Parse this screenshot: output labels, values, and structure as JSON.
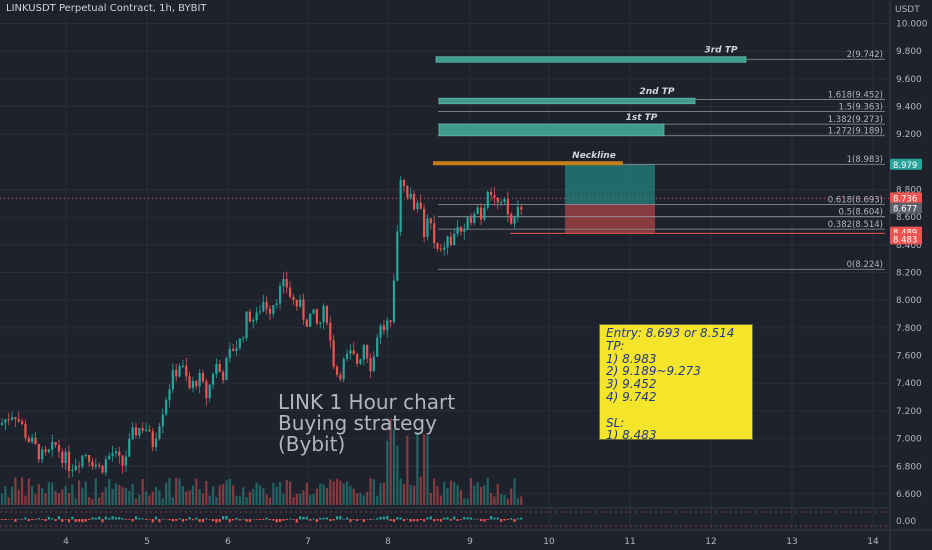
{
  "header": {
    "symbol_line": "LINKUSDT Perpetual Contract, 1h, BYBIT"
  },
  "colors": {
    "up": "#26a69a",
    "down": "#ef5350",
    "background": "#1e222d",
    "target_zone": "#3f9c8c",
    "neckline": "#c77f1a",
    "note_bg": "#f5e52a",
    "note_text": "#1f3a8a"
  },
  "chart_data": {
    "type": "candlestick",
    "currency": "USDT",
    "y_ticks": [
      "10.000",
      "9.800",
      "9.600",
      "9.400",
      "9.200",
      "8.800",
      "8.600",
      "8.400",
      "8.200",
      "8.000",
      "7.800",
      "7.600",
      "7.400",
      "7.200",
      "7.000",
      "6.800",
      "6.600"
    ],
    "x_ticks": [
      "4",
      "5",
      "6",
      "7",
      "8",
      "9",
      "10",
      "11",
      "12",
      "13",
      "14"
    ],
    "ylim": [
      6.52,
      10.17
    ],
    "oscillator_tick": "0.00",
    "close_path": [
      [
        0,
        7.1
      ],
      [
        14,
        7.2
      ],
      [
        28,
        7.0
      ],
      [
        44,
        6.85
      ],
      [
        56,
        6.95
      ],
      [
        70,
        6.8
      ],
      [
        86,
        6.9
      ],
      [
        100,
        6.78
      ],
      [
        112,
        6.9
      ],
      [
        122,
        6.8
      ],
      [
        134,
        7.05
      ],
      [
        145,
        7.1
      ],
      [
        152,
        6.95
      ],
      [
        162,
        7.2
      ],
      [
        170,
        7.4
      ],
      [
        180,
        7.55
      ],
      [
        190,
        7.35
      ],
      [
        198,
        7.45
      ],
      [
        207,
        7.3
      ],
      [
        215,
        7.55
      ],
      [
        222,
        7.45
      ],
      [
        232,
        7.65
      ],
      [
        240,
        7.7
      ],
      [
        248,
        7.9
      ],
      [
        256,
        7.85
      ],
      [
        262,
        8.0
      ],
      [
        270,
        7.95
      ],
      [
        278,
        8.05
      ],
      [
        286,
        8.12
      ],
      [
        292,
        8.0
      ],
      [
        300,
        7.95
      ],
      [
        306,
        7.85
      ],
      [
        312,
        7.9
      ],
      [
        318,
        7.8
      ],
      [
        326,
        7.95
      ],
      [
        332,
        7.6
      ],
      [
        338,
        7.45
      ],
      [
        344,
        7.55
      ],
      [
        350,
        7.6
      ],
      [
        358,
        7.55
      ],
      [
        364,
        7.7
      ],
      [
        372,
        7.5
      ],
      [
        378,
        7.8
      ],
      [
        384,
        7.8
      ],
      [
        390,
        7.85
      ],
      [
        394,
        8.2
      ],
      [
        398,
        8.6
      ],
      [
        402,
        8.95
      ],
      [
        408,
        8.7
      ],
      [
        412,
        8.8
      ],
      [
        416,
        8.6
      ],
      [
        420,
        8.75
      ],
      [
        424,
        8.5
      ],
      [
        428,
        8.65
      ],
      [
        434,
        8.4
      ],
      [
        440,
        8.3
      ],
      [
        446,
        8.45
      ],
      [
        452,
        8.4
      ],
      [
        458,
        8.55
      ],
      [
        464,
        8.45
      ],
      [
        470,
        8.6
      ],
      [
        476,
        8.7
      ],
      [
        482,
        8.6
      ],
      [
        488,
        8.85
      ],
      [
        494,
        8.75
      ],
      [
        500,
        8.65
      ],
      [
        506,
        8.7
      ],
      [
        510,
        8.53
      ],
      [
        516,
        8.62
      ],
      [
        520,
        8.7
      ]
    ],
    "fib_levels": [
      {
        "label": "2(9.742)",
        "value": 9.742
      },
      {
        "label": "1.618(9.452)",
        "value": 9.452
      },
      {
        "label": "1.5(9.363)",
        "value": 9.363
      },
      {
        "label": "1.382(9.273)",
        "value": 9.273
      },
      {
        "label": "1.272(9.189)",
        "value": 9.189
      },
      {
        "label": "1(8.983)",
        "value": 8.983
      },
      {
        "label": "0.618(8.693)",
        "value": 8.693
      },
      {
        "label": "0.5(8.604)",
        "value": 8.604
      },
      {
        "label": "0.382(8.514)",
        "value": 8.514
      },
      {
        "label": "0(8.224)",
        "value": 8.224
      }
    ],
    "targets": [
      {
        "label": "3rd TP",
        "low": 9.72,
        "high": 9.76
      },
      {
        "label": "2nd TP",
        "low": 9.42,
        "high": 9.46
      },
      {
        "label": "1st TP",
        "low": 9.189,
        "high": 9.273
      }
    ],
    "neckline": {
      "label": "Neckline",
      "value": 8.983
    },
    "position": {
      "entry": 8.693,
      "target": 8.983,
      "stop": 8.483
    },
    "price_tags": [
      {
        "text": "8.979",
        "value": 8.979,
        "color": "#26a69a"
      },
      {
        "text": "8.736",
        "value": 8.736,
        "color": "#ef5350",
        "sub": "32:36"
      },
      {
        "text": "8.677",
        "value": 8.677,
        "color": "#5d606b"
      },
      {
        "text": "8.489",
        "value": 8.489,
        "color": "#ef5350"
      },
      {
        "text": "8.483",
        "value": 8.483,
        "color": "#ef5350"
      }
    ]
  },
  "overlay": {
    "line1": "LINK 1 Hour chart",
    "line2": "Buying strategy",
    "line3": "(Bybit)"
  },
  "note": {
    "entry": "Entry: 8.693 or 8.514",
    "tp_header": "TP:",
    "tp1": "1) 8.983",
    "tp2": "2) 9.189~9.273",
    "tp3": "3) 9.452",
    "tp4": "4) 9.742",
    "sl_header": "SL:",
    "sl1": "1) 8.483"
  }
}
